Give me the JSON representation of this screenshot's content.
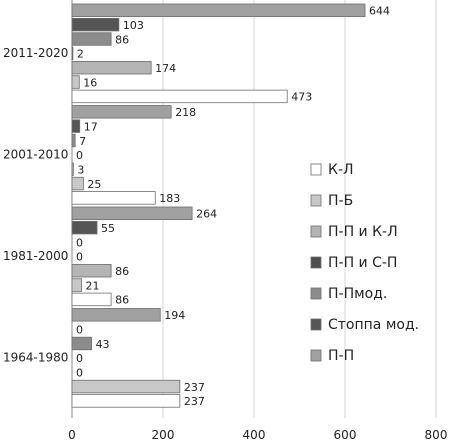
{
  "chart_data": {
    "type": "bar",
    "orientation": "horizontal",
    "title": "",
    "xlabel": "",
    "ylabel": "",
    "xlim": [
      0,
      800
    ],
    "x_ticks": [
      0,
      200,
      400,
      600,
      800
    ],
    "grid": "vertical",
    "legend_position": "right",
    "categories": [
      "2011-2020",
      "2001-2010",
      "1981-2000",
      "1964-1980"
    ],
    "series": [
      {
        "name": "К-Л",
        "color": "#ffffff",
        "values": [
          473,
          183,
          86,
          237
        ]
      },
      {
        "name": "П-Б",
        "color": "#c8c8c8",
        "values": [
          16,
          25,
          21,
          237
        ]
      },
      {
        "name": "П-П и К-Л",
        "color": "#b4b4b4",
        "values": [
          174,
          3,
          86,
          0
        ]
      },
      {
        "name": "П-П и С-П",
        "color": "#4d4d4d",
        "values": [
          2,
          0,
          0,
          0
        ]
      },
      {
        "name": "П-Пмод.",
        "color": "#8c8c8c",
        "values": [
          86,
          7,
          0,
          43
        ]
      },
      {
        "name": "Стоппа мод.",
        "color": "#555555",
        "values": [
          103,
          17,
          55,
          0
        ]
      },
      {
        "name": "П-П",
        "color": "#a0a0a0",
        "values": [
          644,
          218,
          264,
          194
        ]
      }
    ]
  }
}
